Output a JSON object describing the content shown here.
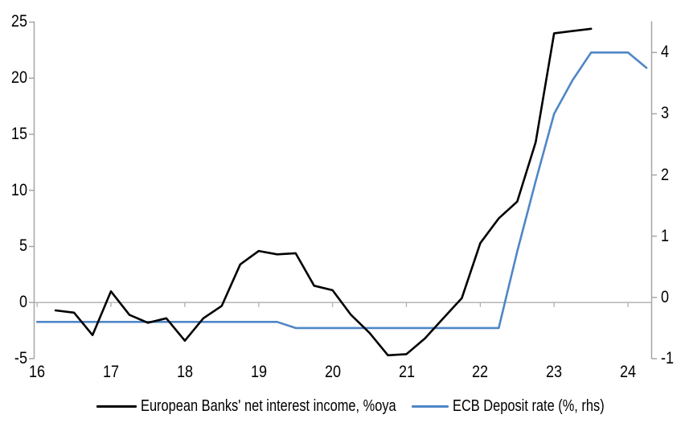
{
  "colors": {
    "axis": "#a6a6a6",
    "zero_gridline": "#aeaeae",
    "series_black": "#000000",
    "series_blue": "#4f86c6",
    "text": "#000000",
    "background": "#ffffff"
  },
  "chart_data": {
    "type": "line",
    "title": "",
    "grid": "horizontal zero line only",
    "legend_position": "bottom",
    "x_axis": {
      "ticks": [
        16,
        17,
        18,
        19,
        20,
        21,
        22,
        23,
        24
      ],
      "range": [
        15.96,
        24.32
      ]
    },
    "left_axis": {
      "ticks": [
        25,
        20,
        15,
        10,
        5,
        0,
        -5
      ],
      "range": [
        -5,
        25.07
      ]
    },
    "right_axis": {
      "ticks": [
        4,
        3,
        2,
        1,
        0,
        -1
      ],
      "range": [
        -1,
        4.51
      ]
    },
    "series": [
      {
        "name": "European Banks' net interest income, %oya",
        "axis": "left",
        "color": "#000000",
        "x": [
          16.25,
          16.5,
          16.75,
          17.0,
          17.25,
          17.5,
          17.75,
          18.0,
          18.25,
          18.5,
          18.75,
          19.0,
          19.25,
          19.5,
          19.75,
          20.0,
          20.25,
          20.5,
          20.75,
          21.0,
          21.25,
          21.5,
          21.75,
          22.0,
          22.25,
          22.5,
          22.75,
          23.0,
          23.25,
          23.5
        ],
        "values": [
          -0.7,
          -0.9,
          -2.9,
          1.0,
          -1.1,
          -1.8,
          -1.4,
          -3.4,
          -1.4,
          -0.3,
          3.4,
          4.6,
          4.3,
          4.4,
          1.5,
          1.1,
          -1.1,
          -2.7,
          -4.7,
          -4.6,
          -3.2,
          -1.4,
          0.4,
          5.3,
          7.5,
          9.0,
          14.3,
          24.0,
          24.2,
          24.4
        ]
      },
      {
        "name": "ECB Deposit rate (%, rhs)",
        "axis": "right",
        "color": "#4f86c6",
        "x": [
          16.0,
          16.25,
          16.5,
          16.75,
          17.0,
          17.25,
          17.5,
          17.75,
          18.0,
          18.25,
          18.5,
          18.75,
          19.0,
          19.25,
          19.5,
          19.75,
          20.0,
          20.25,
          20.5,
          20.75,
          21.0,
          21.25,
          21.5,
          21.75,
          22.0,
          22.25,
          22.5,
          22.75,
          23.0,
          23.25,
          23.5,
          23.75,
          24.0,
          24.25
        ],
        "values": [
          -0.4,
          -0.4,
          -0.4,
          -0.4,
          -0.4,
          -0.4,
          -0.4,
          -0.4,
          -0.4,
          -0.4,
          -0.4,
          -0.4,
          -0.4,
          -0.4,
          -0.5,
          -0.5,
          -0.5,
          -0.5,
          -0.5,
          -0.5,
          -0.5,
          -0.5,
          -0.5,
          -0.5,
          -0.5,
          -0.5,
          0.75,
          1.9,
          3.0,
          3.55,
          4.0,
          4.0,
          4.0,
          3.75
        ]
      }
    ]
  },
  "legend": {
    "items": [
      {
        "label": "European Banks' net interest income, %oya",
        "color": "#000000"
      },
      {
        "label": "ECB Deposit rate (%, rhs)",
        "color": "#4f86c6"
      }
    ]
  }
}
